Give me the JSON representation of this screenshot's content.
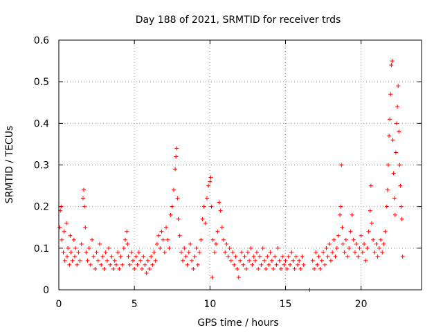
{
  "chart_data": {
    "type": "scatter",
    "title": "Day 188 of 2021, SRMTID for receiver trds",
    "xlabel": "GPS time / hours",
    "ylabel": "SRMTID / TECUs",
    "xlim": [
      0,
      24
    ],
    "ylim": [
      0,
      0.6
    ],
    "xticks": [
      0,
      5,
      10,
      15,
      20
    ],
    "xtick_labels": [
      "0",
      "5",
      "10",
      "15",
      "20"
    ],
    "yticks": [
      0,
      0.1,
      0.2,
      0.3,
      0.4,
      0.5,
      0.6
    ],
    "ytick_labels": [
      "0",
      "0.1",
      "0.2",
      "0.3",
      "0.4",
      "0.5",
      "0.6"
    ],
    "grid": true,
    "marker": "+",
    "color": "#ff0000",
    "series": [
      {
        "name": "SRMTID",
        "points": [
          [
            0.05,
            0.15
          ],
          [
            0.1,
            0.19
          ],
          [
            0.15,
            0.2
          ],
          [
            0.2,
            0.12
          ],
          [
            0.3,
            0.09
          ],
          [
            0.35,
            0.14
          ],
          [
            0.4,
            0.07
          ],
          [
            0.5,
            0.16
          ],
          [
            0.55,
            0.08
          ],
          [
            0.6,
            0.1
          ],
          [
            0.7,
            0.06
          ],
          [
            0.75,
            0.13
          ],
          [
            0.8,
            0.09
          ],
          [
            0.9,
            0.07
          ],
          [
            1.0,
            0.12
          ],
          [
            1.05,
            0.08
          ],
          [
            1.1,
            0.1
          ],
          [
            1.2,
            0.06
          ],
          [
            1.3,
            0.09
          ],
          [
            1.4,
            0.07
          ],
          [
            1.5,
            0.11
          ],
          [
            1.6,
            0.22
          ],
          [
            1.65,
            0.24
          ],
          [
            1.7,
            0.2
          ],
          [
            1.75,
            0.15
          ],
          [
            1.8,
            0.09
          ],
          [
            1.9,
            0.07
          ],
          [
            2.0,
            0.1
          ],
          [
            2.1,
            0.06
          ],
          [
            2.2,
            0.12
          ],
          [
            2.3,
            0.08
          ],
          [
            2.4,
            0.05
          ],
          [
            2.5,
            0.09
          ],
          [
            2.6,
            0.07
          ],
          [
            2.7,
            0.11
          ],
          [
            2.8,
            0.06
          ],
          [
            2.9,
            0.08
          ],
          [
            3.0,
            0.05
          ],
          [
            3.1,
            0.09
          ],
          [
            3.2,
            0.07
          ],
          [
            3.3,
            0.1
          ],
          [
            3.4,
            0.06
          ],
          [
            3.5,
            0.08
          ],
          [
            3.6,
            0.05
          ],
          [
            3.7,
            0.07
          ],
          [
            3.8,
            0.06
          ],
          [
            3.9,
            0.09
          ],
          [
            4.0,
            0.05
          ],
          [
            4.1,
            0.08
          ],
          [
            4.2,
            0.06
          ],
          [
            4.3,
            0.1
          ],
          [
            4.4,
            0.12
          ],
          [
            4.5,
            0.14
          ],
          [
            4.55,
            0.11
          ],
          [
            4.6,
            0.08
          ],
          [
            4.7,
            0.06
          ],
          [
            4.8,
            0.09
          ],
          [
            4.9,
            0.07
          ],
          [
            5.0,
            0.05
          ],
          [
            5.1,
            0.08
          ],
          [
            5.2,
            0.06
          ],
          [
            5.3,
            0.09
          ],
          [
            5.4,
            0.07
          ],
          [
            5.5,
            0.05
          ],
          [
            5.6,
            0.08
          ],
          [
            5.7,
            0.06
          ],
          [
            5.8,
            0.04
          ],
          [
            5.9,
            0.07
          ],
          [
            6.0,
            0.05
          ],
          [
            6.1,
            0.08
          ],
          [
            6.2,
            0.06
          ],
          [
            6.3,
            0.09
          ],
          [
            6.4,
            0.07
          ],
          [
            6.5,
            0.11
          ],
          [
            6.6,
            0.13
          ],
          [
            6.7,
            0.1
          ],
          [
            6.8,
            0.14
          ],
          [
            6.9,
            0.12
          ],
          [
            7.0,
            0.09
          ],
          [
            7.1,
            0.15
          ],
          [
            7.2,
            0.12
          ],
          [
            7.3,
            0.1
          ],
          [
            7.4,
            0.18
          ],
          [
            7.5,
            0.2
          ],
          [
            7.6,
            0.24
          ],
          [
            7.7,
            0.29
          ],
          [
            7.75,
            0.32
          ],
          [
            7.8,
            0.34
          ],
          [
            7.85,
            0.22
          ],
          [
            7.9,
            0.17
          ],
          [
            8.0,
            0.13
          ],
          [
            8.1,
            0.09
          ],
          [
            8.2,
            0.07
          ],
          [
            8.3,
            0.1
          ],
          [
            8.4,
            0.08
          ],
          [
            8.5,
            0.06
          ],
          [
            8.6,
            0.09
          ],
          [
            8.7,
            0.11
          ],
          [
            8.8,
            0.07
          ],
          [
            8.9,
            0.05
          ],
          [
            9.0,
            0.08
          ],
          [
            9.1,
            0.1
          ],
          [
            9.2,
            0.06
          ],
          [
            9.3,
            0.09
          ],
          [
            9.4,
            0.12
          ],
          [
            9.5,
            0.17
          ],
          [
            9.6,
            0.2
          ],
          [
            9.7,
            0.16
          ],
          [
            9.8,
            0.22
          ],
          [
            9.9,
            0.25
          ],
          [
            10.0,
            0.26
          ],
          [
            10.05,
            0.27
          ],
          [
            10.1,
            0.2
          ],
          [
            10.15,
            0.03
          ],
          [
            10.2,
            0.12
          ],
          [
            10.3,
            0.09
          ],
          [
            10.4,
            0.11
          ],
          [
            10.5,
            0.14
          ],
          [
            10.6,
            0.21
          ],
          [
            10.7,
            0.19
          ],
          [
            10.8,
            0.15
          ],
          [
            10.9,
            0.12
          ],
          [
            11.0,
            0.09
          ],
          [
            11.1,
            0.11
          ],
          [
            11.2,
            0.08
          ],
          [
            11.3,
            0.1
          ],
          [
            11.4,
            0.07
          ],
          [
            11.5,
            0.09
          ],
          [
            11.6,
            0.06
          ],
          [
            11.7,
            0.08
          ],
          [
            11.8,
            0.05
          ],
          [
            11.9,
            0.03
          ],
          [
            12.0,
            0.07
          ],
          [
            12.1,
            0.09
          ],
          [
            12.2,
            0.06
          ],
          [
            12.3,
            0.08
          ],
          [
            12.4,
            0.05
          ],
          [
            12.5,
            0.09
          ],
          [
            12.6,
            0.07
          ],
          [
            12.7,
            0.1
          ],
          [
            12.8,
            0.06
          ],
          [
            12.9,
            0.08
          ],
          [
            13.0,
            0.07
          ],
          [
            13.1,
            0.09
          ],
          [
            13.2,
            0.05
          ],
          [
            13.3,
            0.08
          ],
          [
            13.4,
            0.06
          ],
          [
            13.5,
            0.1
          ],
          [
            13.6,
            0.07
          ],
          [
            13.7,
            0.05
          ],
          [
            13.8,
            0.08
          ],
          [
            13.9,
            0.06
          ],
          [
            14.0,
            0.09
          ],
          [
            14.1,
            0.07
          ],
          [
            14.2,
            0.05
          ],
          [
            14.3,
            0.08
          ],
          [
            14.4,
            0.06
          ],
          [
            14.5,
            0.1
          ],
          [
            14.6,
            0.07
          ],
          [
            14.7,
            0.05
          ],
          [
            14.8,
            0.08
          ],
          [
            14.9,
            0.06
          ],
          [
            15.0,
            0.07
          ],
          [
            15.1,
            0.05
          ],
          [
            15.2,
            0.08
          ],
          [
            15.3,
            0.06
          ],
          [
            15.4,
            0.09
          ],
          [
            15.5,
            0.07
          ],
          [
            15.6,
            0.05
          ],
          [
            15.7,
            0.08
          ],
          [
            15.8,
            0.06
          ],
          [
            15.9,
            0.07
          ],
          [
            16.0,
            0.05
          ],
          [
            16.1,
            0.08
          ],
          [
            16.2,
            0.06
          ],
          [
            16.6,
            0.0
          ],
          [
            16.8,
            0.07
          ],
          [
            16.9,
            0.05
          ],
          [
            17.0,
            0.09
          ],
          [
            17.1,
            0.06
          ],
          [
            17.2,
            0.08
          ],
          [
            17.3,
            0.05
          ],
          [
            17.4,
            0.07
          ],
          [
            17.5,
            0.09
          ],
          [
            17.6,
            0.06
          ],
          [
            17.7,
            0.1
          ],
          [
            17.8,
            0.08
          ],
          [
            17.9,
            0.11
          ],
          [
            18.0,
            0.07
          ],
          [
            18.1,
            0.09
          ],
          [
            18.2,
            0.12
          ],
          [
            18.3,
            0.08
          ],
          [
            18.4,
            0.1
          ],
          [
            18.5,
            0.13
          ],
          [
            18.6,
            0.18
          ],
          [
            18.65,
            0.2
          ],
          [
            18.7,
            0.3
          ],
          [
            18.75,
            0.15
          ],
          [
            18.8,
            0.11
          ],
          [
            18.9,
            0.09
          ],
          [
            19.0,
            0.12
          ],
          [
            19.1,
            0.08
          ],
          [
            19.2,
            0.1
          ],
          [
            19.3,
            0.14
          ],
          [
            19.4,
            0.18
          ],
          [
            19.5,
            0.12
          ],
          [
            19.6,
            0.09
          ],
          [
            19.7,
            0.11
          ],
          [
            19.8,
            0.08
          ],
          [
            19.9,
            0.1
          ],
          [
            20.0,
            0.13
          ],
          [
            20.1,
            0.09
          ],
          [
            20.2,
            0.11
          ],
          [
            20.3,
            0.07
          ],
          [
            20.4,
            0.1
          ],
          [
            20.5,
            0.14
          ],
          [
            20.6,
            0.19
          ],
          [
            20.65,
            0.25
          ],
          [
            20.7,
            0.16
          ],
          [
            20.8,
            0.12
          ],
          [
            20.9,
            0.09
          ],
          [
            21.0,
            0.11
          ],
          [
            21.1,
            0.08
          ],
          [
            21.2,
            0.1
          ],
          [
            21.3,
            0.12
          ],
          [
            21.4,
            0.09
          ],
          [
            21.5,
            0.11
          ],
          [
            21.6,
            0.14
          ],
          [
            21.7,
            0.2
          ],
          [
            21.75,
            0.24
          ],
          [
            21.8,
            0.3
          ],
          [
            21.85,
            0.37
          ],
          [
            21.9,
            0.41
          ],
          [
            21.95,
            0.47
          ],
          [
            22.0,
            0.54
          ],
          [
            22.05,
            0.55
          ],
          [
            22.1,
            0.36
          ],
          [
            22.15,
            0.28
          ],
          [
            22.2,
            0.22
          ],
          [
            22.25,
            0.18
          ],
          [
            22.3,
            0.33
          ],
          [
            22.35,
            0.4
          ],
          [
            22.4,
            0.44
          ],
          [
            22.45,
            0.49
          ],
          [
            22.5,
            0.38
          ],
          [
            22.55,
            0.3
          ],
          [
            22.6,
            0.25
          ],
          [
            22.65,
            0.2
          ],
          [
            22.7,
            0.17
          ],
          [
            22.75,
            0.08
          ]
        ]
      }
    ]
  }
}
